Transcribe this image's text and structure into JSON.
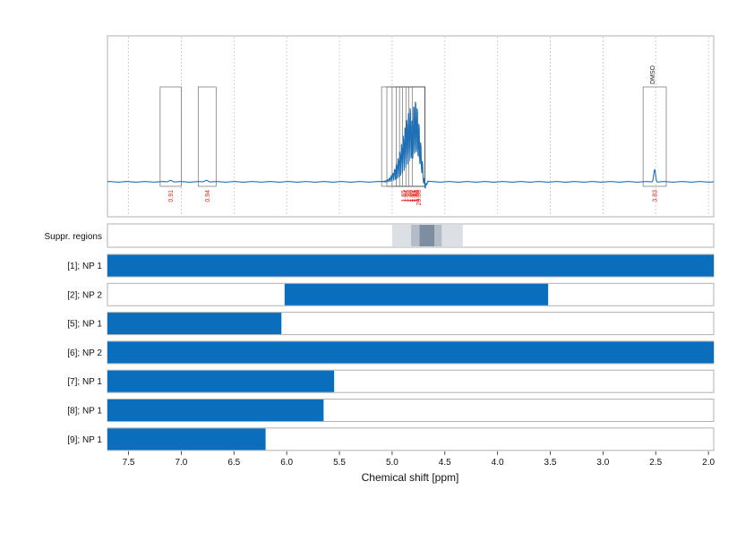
{
  "chart_data": {
    "type": "line",
    "title": "",
    "xlabel": "Chemical shift [ppm]",
    "xlim": [
      7.7,
      1.95
    ],
    "x_reversed": true,
    "xticks": [
      "7.5",
      "7.0",
      "6.5",
      "6.0",
      "5.5",
      "5.0",
      "4.5",
      "4.0",
      "3.5",
      "3.0",
      "2.5",
      "2.0"
    ],
    "tick_values": [
      7.5,
      7.0,
      6.5,
      6.0,
      5.5,
      5.0,
      4.5,
      4.0,
      3.5,
      3.0,
      2.5,
      2.0
    ],
    "grid": true,
    "spectrum_color": "#1f6fb4",
    "integration_regions": [
      {
        "from": 7.2,
        "to": 7.0,
        "label": "0.91"
      },
      {
        "from": 6.84,
        "to": 6.67,
        "label": "0.94"
      },
      {
        "from": 5.1,
        "to": 4.69,
        "label": "1.65"
      },
      {
        "from": 5.05,
        "to": 4.69,
        "label": "1.64"
      },
      {
        "from": 5.0,
        "to": 4.69,
        "label": "1.59"
      },
      {
        "from": 4.96,
        "to": 4.69,
        "label": "1.66"
      },
      {
        "from": 4.93,
        "to": 4.69,
        "label": "1.62"
      },
      {
        "from": 4.9,
        "to": 4.69,
        "label": "1.51"
      },
      {
        "from": 4.87,
        "to": 4.69,
        "label": "1.52"
      },
      {
        "from": 4.84,
        "to": 4.69,
        "label": "1.60"
      },
      {
        "from": 4.81,
        "to": 4.69,
        "label": "20.06"
      },
      {
        "from": 2.62,
        "to": 2.4,
        "label": "3.83"
      }
    ],
    "annotations": [
      {
        "x": 2.5,
        "label": "DMSO"
      }
    ],
    "suppressed_regions_label": "Suppr. regions",
    "suppressed_regions": [
      {
        "from": 5.0,
        "to": 4.33,
        "opacity": 0.18
      },
      {
        "from": 4.82,
        "to": 4.53,
        "opacity": 0.25
      },
      {
        "from": 4.74,
        "to": 4.6,
        "opacity": 0.45
      }
    ],
    "series": [
      {
        "name": "[1]; NP 1",
        "from": 7.7,
        "to": 1.95
      },
      {
        "name": "[2]; NP 2",
        "from": 6.02,
        "to": 3.52
      },
      {
        "name": "[5]; NP 1",
        "from": 7.7,
        "to": 6.05
      },
      {
        "name": "[6]; NP 2",
        "from": 7.7,
        "to": 1.95
      },
      {
        "name": "[7]; NP 1",
        "from": 7.7,
        "to": 5.55
      },
      {
        "name": "[8]; NP 1",
        "from": 7.7,
        "to": 5.65
      },
      {
        "name": "[9]; NP 1",
        "from": 7.7,
        "to": 6.2
      }
    ],
    "bar_color": "#0a6ebd"
  }
}
